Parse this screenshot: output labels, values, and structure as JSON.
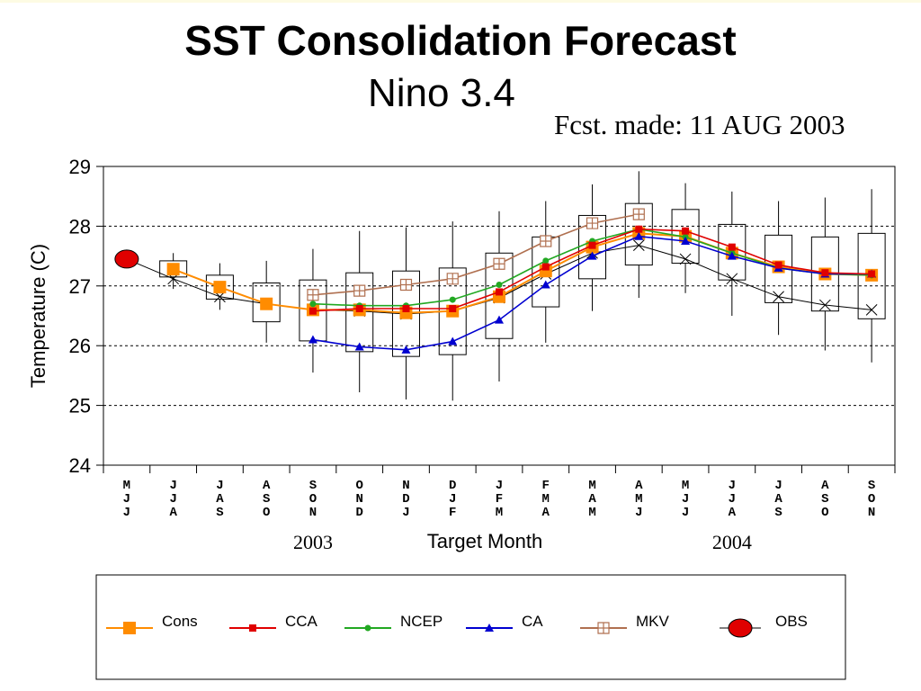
{
  "page": {
    "title": "SST Consolidation Forecast",
    "subtitle": "Nino 3.4",
    "forecast_made": "Fcst. made:  11 AUG 2003"
  },
  "chart_data": {
    "type": "line",
    "title": "SST Consolidation Forecast",
    "subtitle": "Nino 3.4",
    "annotation": "Fcst. made:  11 AUG 2003",
    "xlabel": "Target Month",
    "ylabel": "Temperature (C)",
    "ylim": [
      24,
      29
    ],
    "yticks": [
      24,
      25,
      26,
      27,
      28,
      29
    ],
    "grid": "horizontal dashed at 25, 26, 27, 28",
    "year_labels": [
      {
        "text": "2003",
        "at_category": 4
      },
      {
        "text": "2004",
        "at_category": 13
      }
    ],
    "categories": [
      "MJJ",
      "JJA",
      "JAS",
      "ASO",
      "SON",
      "OND",
      "NDJ",
      "DJF",
      "JFM",
      "FMA",
      "MAM",
      "AMJ",
      "MJJ",
      "JJA",
      "JAS",
      "ASO",
      "SON"
    ],
    "obs": {
      "name": "OBS",
      "category_index": 0,
      "value": 27.45,
      "color": "#e00000"
    },
    "black_line": {
      "color": "#000000",
      "values": [
        27.45,
        27.12,
        26.82,
        26.7,
        26.6,
        26.58,
        26.53,
        26.58,
        26.8,
        27.2,
        27.55,
        27.68,
        27.45,
        27.12,
        26.82,
        26.68,
        26.6
      ]
    },
    "boxes": [
      null,
      {
        "low": 27.15,
        "high": 27.42,
        "wmin": 26.95,
        "wmax": 27.55
      },
      {
        "low": 26.78,
        "high": 27.18,
        "wmin": 26.6,
        "wmax": 27.38
      },
      {
        "low": 26.4,
        "high": 27.05,
        "wmin": 26.05,
        "wmax": 27.42
      },
      {
        "low": 26.08,
        "high": 27.1,
        "wmin": 25.55,
        "wmax": 27.62
      },
      {
        "low": 25.9,
        "high": 27.22,
        "wmin": 25.22,
        "wmax": 27.92
      },
      {
        "low": 25.82,
        "high": 27.25,
        "wmin": 25.1,
        "wmax": 27.98
      },
      {
        "low": 25.85,
        "high": 27.3,
        "wmin": 25.08,
        "wmax": 28.08
      },
      {
        "low": 26.12,
        "high": 27.55,
        "wmin": 25.4,
        "wmax": 28.25
      },
      {
        "low": 26.65,
        "high": 27.82,
        "wmin": 26.05,
        "wmax": 28.42
      },
      {
        "low": 27.12,
        "high": 28.18,
        "wmin": 26.58,
        "wmax": 28.7
      },
      {
        "low": 27.35,
        "high": 28.38,
        "wmin": 26.8,
        "wmax": 28.92
      },
      {
        "low": 27.38,
        "high": 28.28,
        "wmin": 26.88,
        "wmax": 28.72
      },
      {
        "low": 27.1,
        "high": 28.03,
        "wmin": 26.5,
        "wmax": 28.58
      },
      {
        "low": 26.72,
        "high": 27.85,
        "wmin": 26.18,
        "wmax": 28.42
      },
      {
        "low": 26.58,
        "high": 27.82,
        "wmin": 25.92,
        "wmax": 28.48
      },
      {
        "low": 26.45,
        "high": 27.88,
        "wmin": 25.72,
        "wmax": 28.62
      }
    ],
    "series": [
      {
        "name": "Cons",
        "color": "#ff8c00",
        "marker": "square-large",
        "values": [
          null,
          27.28,
          26.98,
          26.7,
          26.6,
          26.6,
          26.55,
          26.58,
          26.82,
          27.25,
          27.65,
          27.88,
          27.83,
          27.55,
          27.32,
          27.2,
          27.18
        ]
      },
      {
        "name": "CCA",
        "color": "#e00000",
        "marker": "square-small",
        "values": [
          null,
          null,
          null,
          null,
          26.58,
          26.62,
          26.62,
          26.62,
          26.9,
          27.32,
          27.68,
          27.95,
          27.92,
          27.65,
          27.35,
          27.22,
          27.2
        ]
      },
      {
        "name": "NCEP",
        "color": "#22a822",
        "marker": "circle",
        "values": [
          null,
          null,
          null,
          null,
          26.7,
          26.67,
          26.67,
          26.77,
          27.02,
          27.42,
          27.75,
          27.95,
          27.82,
          27.55,
          27.3,
          27.2,
          27.18
        ]
      },
      {
        "name": "CA",
        "color": "#0000d0",
        "marker": "triangle",
        "values": [
          null,
          null,
          null,
          null,
          26.1,
          25.98,
          25.93,
          26.07,
          26.43,
          27.02,
          27.5,
          27.83,
          27.75,
          27.5,
          27.3,
          27.2,
          27.2
        ]
      },
      {
        "name": "MKV",
        "color": "#b07050",
        "marker": "square-cross",
        "values": [
          null,
          null,
          null,
          null,
          26.85,
          26.92,
          27.02,
          27.12,
          27.37,
          27.75,
          28.05,
          28.2,
          null,
          null,
          null,
          null,
          null
        ]
      }
    ],
    "legend": {
      "placement": "bottom",
      "entries": [
        "Cons",
        "CCA",
        "NCEP",
        "CA",
        "MKV",
        "OBS"
      ]
    }
  }
}
